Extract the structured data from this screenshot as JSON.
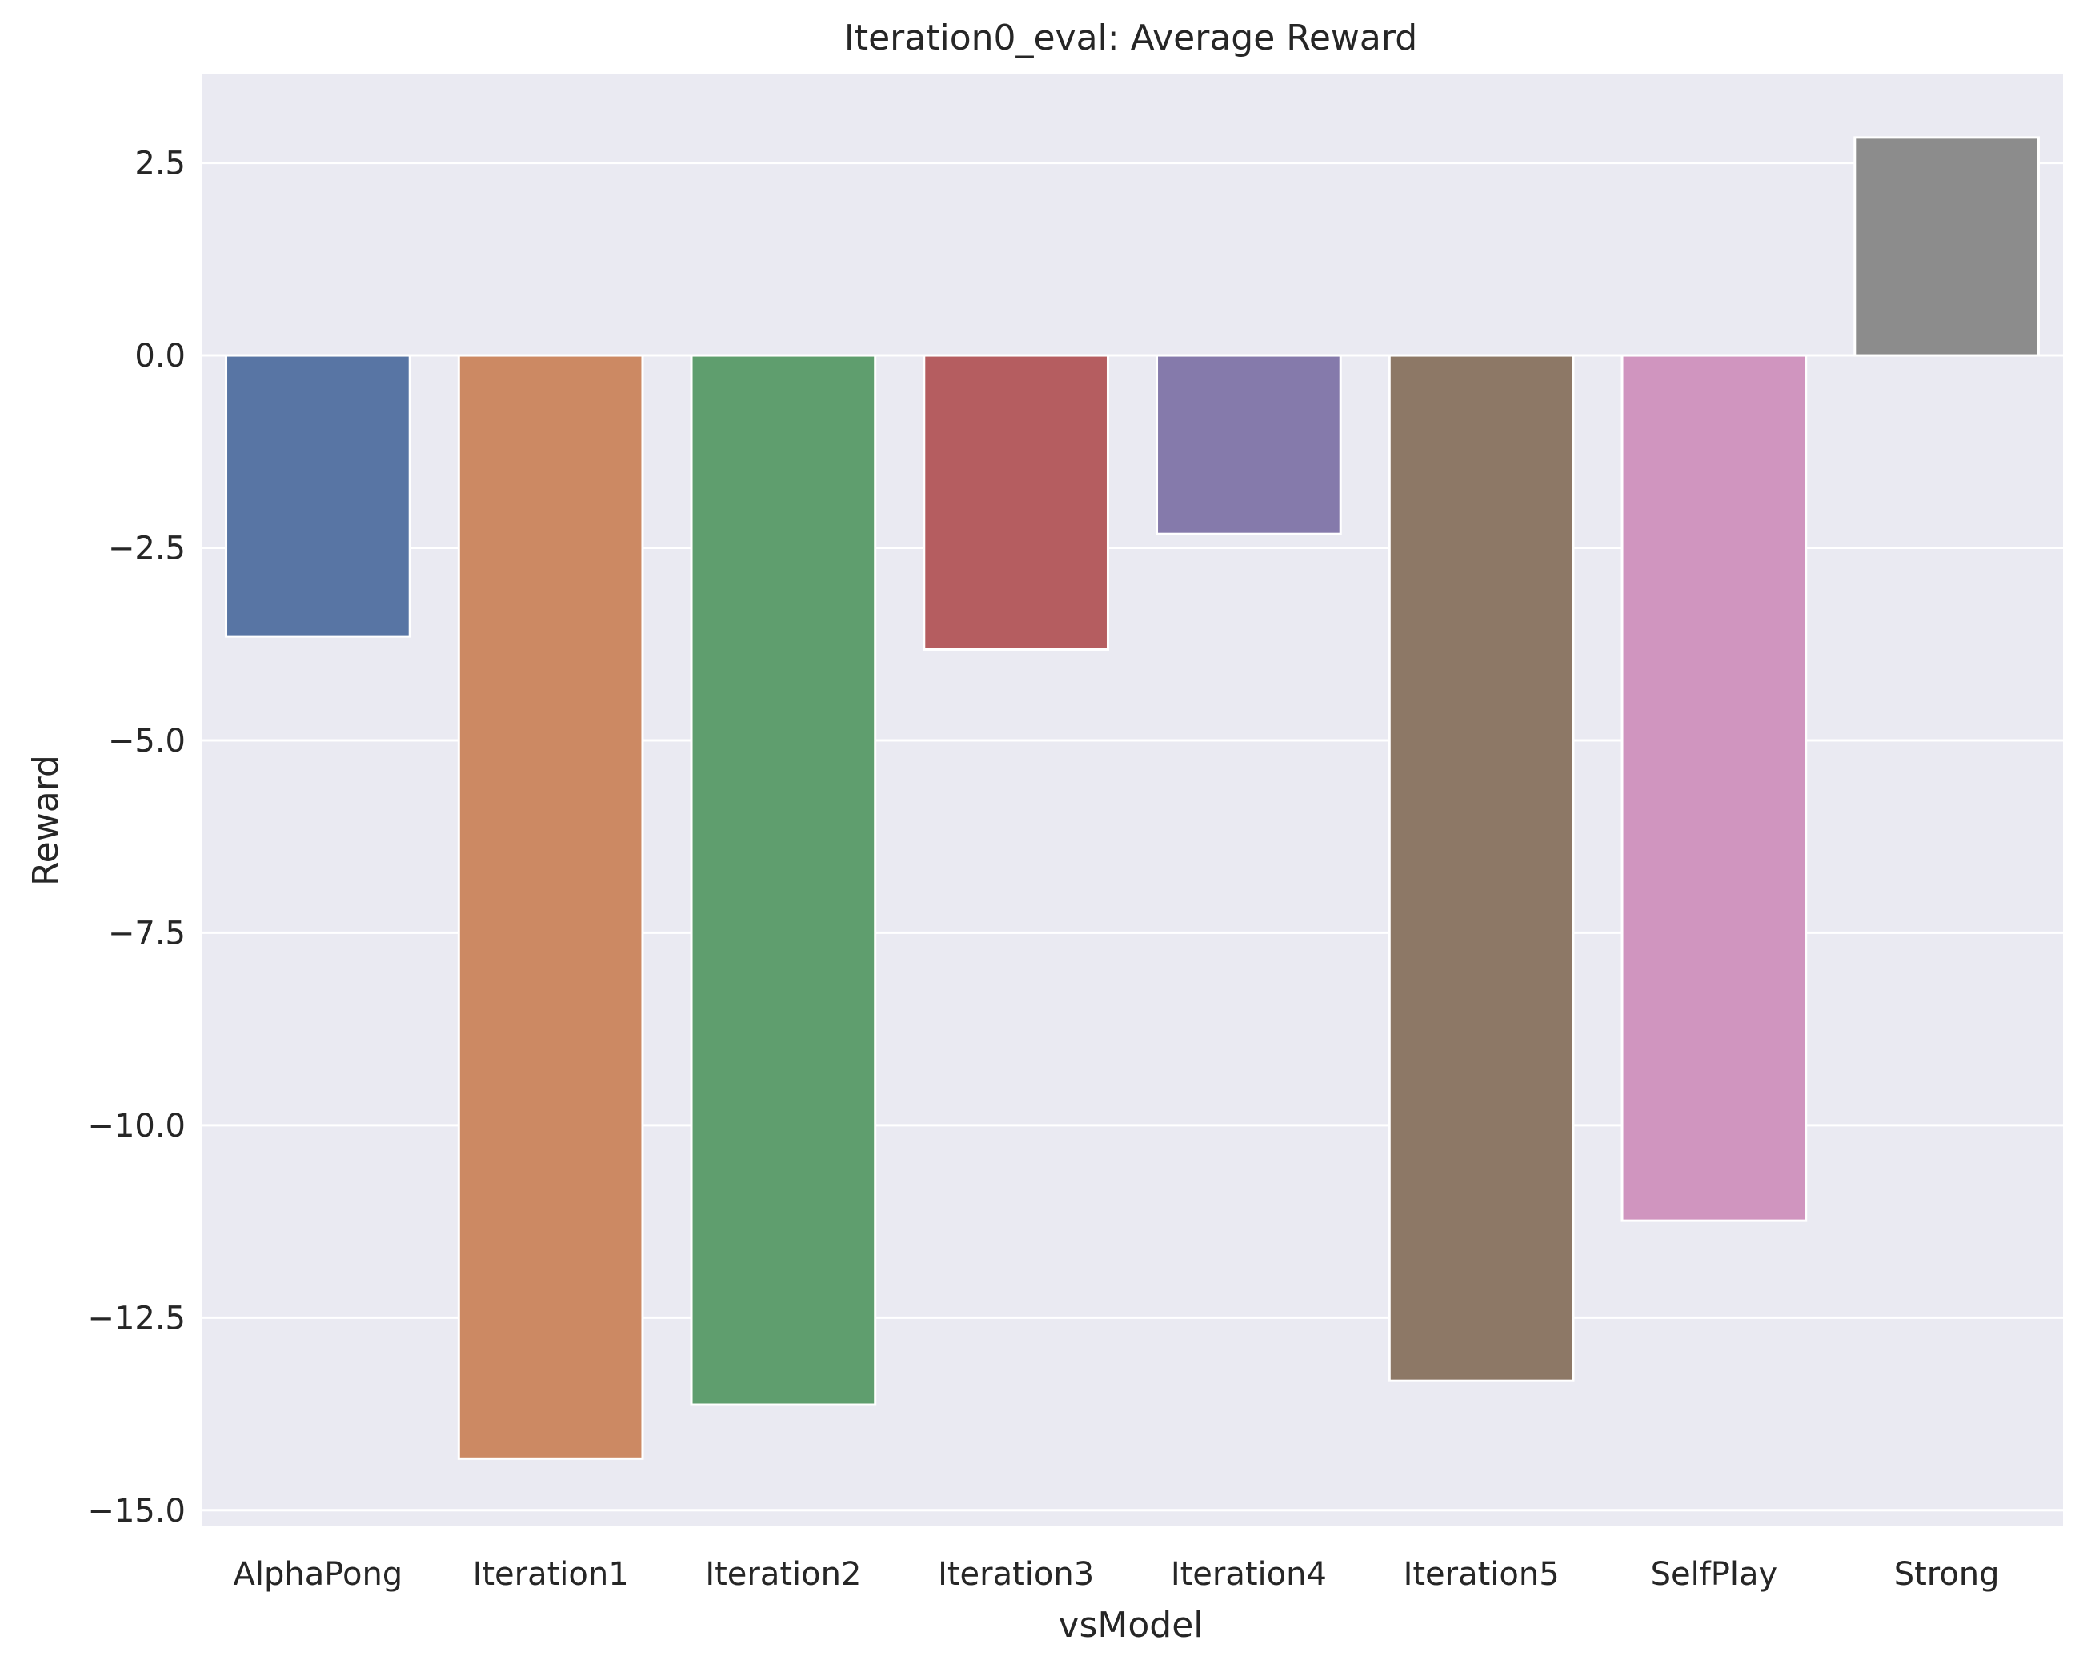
{
  "chart_data": {
    "type": "bar",
    "title": "Iteration0_eval: Average Reward",
    "xlabel": "vsModel",
    "ylabel": "Reward",
    "categories": [
      "AlphaPong",
      "Iteration1",
      "Iteration2",
      "Iteration3",
      "Iteration4",
      "Iteration5",
      "SelfPlay",
      "Strong"
    ],
    "values": [
      -3.65,
      -14.33,
      -13.63,
      -3.82,
      -2.32,
      -13.32,
      -11.24,
      2.83
    ],
    "colors": [
      "#5875a4",
      "#cc8963",
      "#5f9e6e",
      "#b55d60",
      "#857aab",
      "#8d7866",
      "#d095bf",
      "#8c8c8c"
    ],
    "ylim": [
      -15.2,
      3.65
    ],
    "yticks": [
      2.5,
      0.0,
      -2.5,
      -5.0,
      -7.5,
      -10.0,
      -12.5,
      -15.0
    ],
    "ytick_labels": [
      "2.5",
      "0.0",
      "−2.5",
      "−5.0",
      "−7.5",
      "−10.0",
      "−12.5",
      "−15.0"
    ],
    "grid": true,
    "background": "#eaeaf2",
    "legend": "none"
  }
}
